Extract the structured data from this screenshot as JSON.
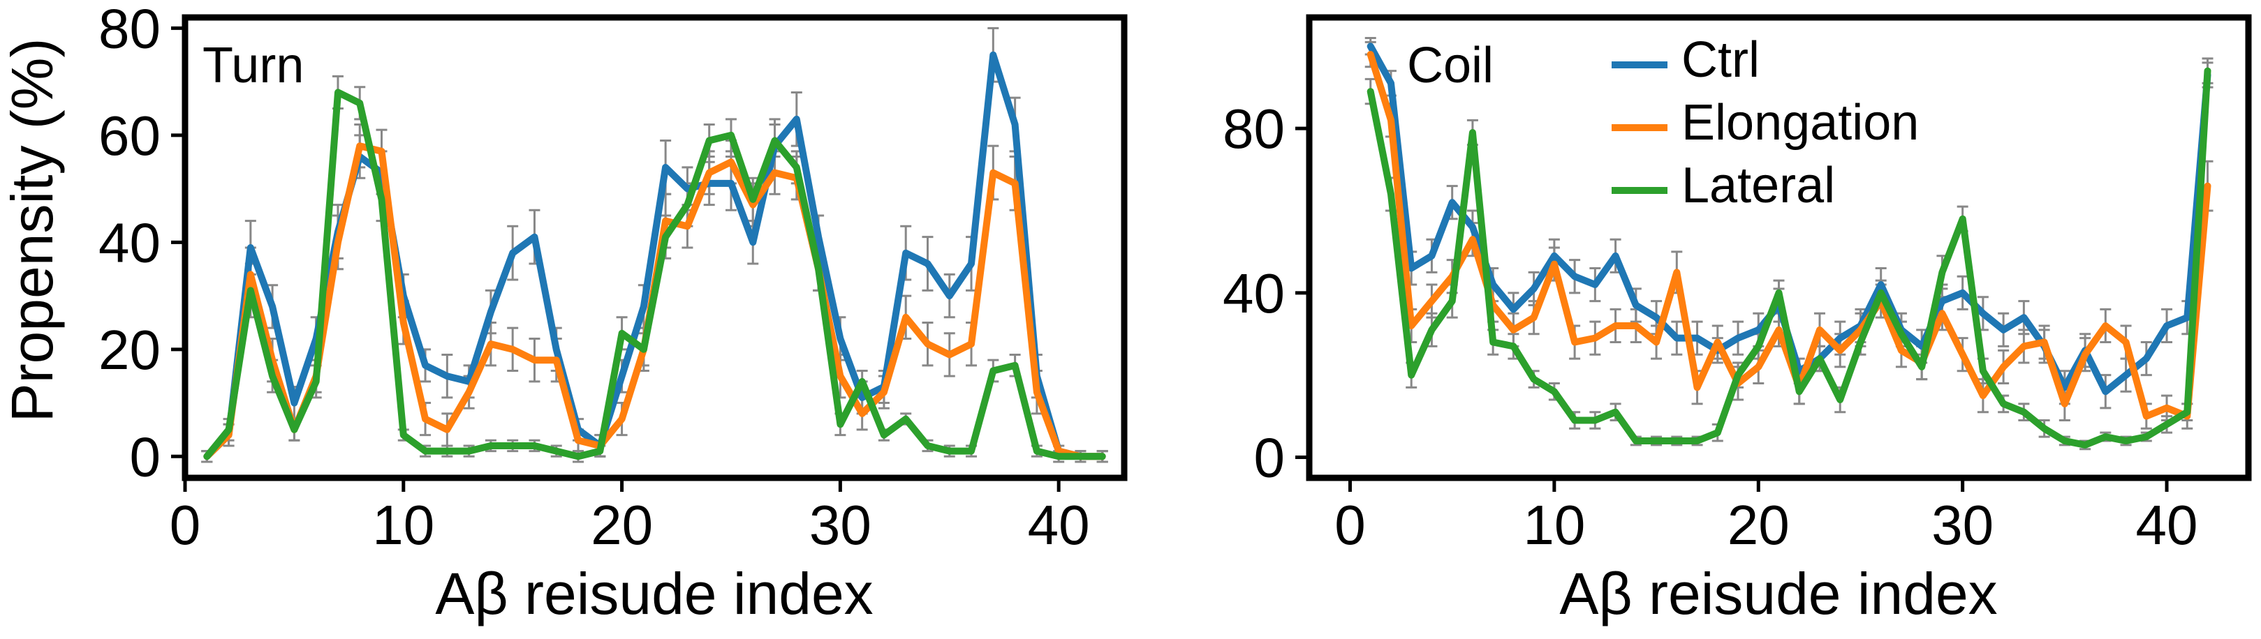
{
  "figure": {
    "y_axis_title": "Propensity (%)"
  },
  "chart_data": [
    {
      "type": "line",
      "panel_label": "Turn",
      "xlabel": "Aβ reisude index",
      "ylabel": "Propensity (%)",
      "xlim": [
        0,
        43
      ],
      "ylim": [
        -4,
        82
      ],
      "xticks": [
        0,
        10,
        20,
        30,
        40
      ],
      "yticks": [
        0,
        20,
        40,
        60,
        80
      ],
      "grid": false,
      "error_bars": true,
      "x": [
        1,
        2,
        3,
        4,
        5,
        6,
        7,
        8,
        9,
        10,
        11,
        12,
        13,
        14,
        15,
        16,
        17,
        18,
        19,
        20,
        21,
        22,
        23,
        24,
        25,
        26,
        27,
        28,
        29,
        30,
        31,
        32,
        33,
        34,
        35,
        36,
        37,
        38,
        39,
        40,
        41,
        42
      ],
      "series": [
        {
          "name": "Ctrl",
          "color": "#1f77b4",
          "values": [
            0,
            4,
            39,
            28,
            10,
            22,
            42,
            56,
            53,
            30,
            17,
            15,
            14,
            27,
            38,
            41,
            20,
            5,
            2,
            15,
            28,
            54,
            50,
            51,
            51,
            40,
            58,
            63,
            41,
            22,
            11,
            13,
            38,
            36,
            30,
            36,
            75,
            62,
            15,
            1,
            0,
            0
          ],
          "errors": [
            1,
            2,
            5,
            4,
            3,
            4,
            5,
            4,
            4,
            4,
            3,
            4,
            3,
            4,
            5,
            5,
            4,
            2,
            2,
            3,
            4,
            5,
            4,
            4,
            5,
            4,
            5,
            5,
            4,
            4,
            3,
            3,
            5,
            5,
            4,
            5,
            5,
            5,
            4,
            1,
            1,
            1
          ]
        },
        {
          "name": "Elongation",
          "color": "#ff7f0e",
          "values": [
            0,
            4,
            34,
            18,
            5,
            15,
            40,
            58,
            57,
            25,
            7,
            5,
            12,
            21,
            20,
            18,
            18,
            3,
            2,
            7,
            20,
            44,
            43,
            53,
            55,
            47,
            53,
            52,
            35,
            15,
            8,
            12,
            26,
            21,
            19,
            21,
            53,
            51,
            12,
            1,
            0,
            0
          ],
          "errors": [
            1,
            2,
            5,
            4,
            2,
            3,
            5,
            4,
            4,
            4,
            3,
            3,
            3,
            4,
            4,
            4,
            4,
            2,
            2,
            3,
            4,
            5,
            4,
            4,
            4,
            4,
            4,
            4,
            4,
            4,
            3,
            3,
            4,
            4,
            4,
            4,
            5,
            5,
            4,
            1,
            1,
            1
          ]
        },
        {
          "name": "Lateral",
          "color": "#2ca02c",
          "values": [
            0,
            5,
            31,
            15,
            5,
            14,
            68,
            66,
            48,
            4,
            1,
            1,
            1,
            2,
            2,
            2,
            1,
            0,
            1,
            23,
            20,
            41,
            47,
            59,
            60,
            48,
            59,
            54,
            35,
            6,
            14,
            4,
            7,
            2,
            1,
            1,
            16,
            17,
            1,
            0,
            0,
            0
          ],
          "errors": [
            1,
            2,
            5,
            3,
            2,
            3,
            3,
            3,
            4,
            1,
            1,
            1,
            1,
            1,
            1,
            1,
            1,
            1,
            1,
            3,
            3,
            4,
            4,
            3,
            3,
            4,
            3,
            3,
            4,
            2,
            2,
            1,
            1,
            1,
            1,
            1,
            2,
            2,
            1,
            1,
            1,
            1
          ]
        }
      ]
    },
    {
      "type": "line",
      "panel_label": "Coil",
      "xlabel": "Aβ reisude index",
      "ylabel": "",
      "xlim": [
        -2,
        44
      ],
      "ylim": [
        -5,
        107
      ],
      "xticks": [
        0,
        10,
        20,
        30,
        40
      ],
      "yticks": [
        0,
        40,
        80
      ],
      "grid": false,
      "error_bars": true,
      "legend": {
        "position": "top-center",
        "entries": [
          "Ctrl",
          "Elongation",
          "Lateral"
        ]
      },
      "x": [
        1,
        2,
        3,
        4,
        5,
        6,
        7,
        8,
        9,
        10,
        11,
        12,
        13,
        14,
        15,
        16,
        17,
        18,
        19,
        20,
        21,
        22,
        23,
        24,
        25,
        26,
        27,
        28,
        29,
        30,
        31,
        32,
        33,
        34,
        35,
        36,
        37,
        38,
        39,
        40,
        41,
        42
      ],
      "series": [
        {
          "name": "Ctrl",
          "color": "#1f77b4",
          "values": [
            100,
            91,
            46,
            49,
            62,
            56,
            42,
            36,
            41,
            49,
            44,
            42,
            49,
            37,
            34,
            29,
            29,
            26,
            29,
            31,
            37,
            21,
            24,
            29,
            32,
            42,
            31,
            27,
            38,
            40,
            35,
            31,
            34,
            27,
            17,
            26,
            16,
            20,
            24,
            32,
            34,
            93
          ],
          "errors": [
            2,
            3,
            4,
            4,
            4,
            4,
            4,
            4,
            4,
            4,
            4,
            4,
            4,
            4,
            4,
            4,
            4,
            3,
            4,
            4,
            4,
            3,
            3,
            4,
            4,
            4,
            4,
            4,
            4,
            4,
            4,
            4,
            4,
            4,
            4,
            4,
            4,
            4,
            4,
            4,
            4,
            3
          ]
        },
        {
          "name": "Elongation",
          "color": "#ff7f0e",
          "values": [
            98,
            82,
            32,
            38,
            44,
            53,
            37,
            31,
            34,
            47,
            28,
            29,
            32,
            32,
            28,
            45,
            17,
            28,
            18,
            22,
            31,
            17,
            31,
            26,
            31,
            38,
            26,
            23,
            35,
            25,
            15,
            22,
            27,
            28,
            13,
            25,
            32,
            28,
            10,
            12,
            10,
            66
          ],
          "errors": [
            3,
            4,
            4,
            4,
            4,
            4,
            4,
            4,
            4,
            4,
            4,
            4,
            4,
            4,
            4,
            5,
            4,
            4,
            4,
            4,
            4,
            4,
            4,
            4,
            4,
            4,
            4,
            4,
            4,
            4,
            4,
            4,
            4,
            4,
            4,
            4,
            4,
            4,
            3,
            3,
            3,
            6
          ]
        },
        {
          "name": "Lateral",
          "color": "#2ca02c",
          "values": [
            89,
            64,
            20,
            31,
            38,
            79,
            28,
            27,
            19,
            16,
            9,
            9,
            11,
            4,
            4,
            4,
            4,
            6,
            20,
            27,
            40,
            16,
            24,
            14,
            28,
            40,
            30,
            22,
            45,
            58,
            21,
            13,
            11,
            7,
            4,
            3,
            5,
            4,
            5,
            8,
            11,
            94
          ],
          "errors": [
            3,
            4,
            3,
            4,
            4,
            3,
            3,
            3,
            2,
            2,
            2,
            2,
            2,
            1,
            1,
            1,
            1,
            2,
            3,
            3,
            3,
            3,
            3,
            3,
            3,
            3,
            3,
            3,
            4,
            3,
            3,
            2,
            2,
            2,
            1,
            1,
            1,
            1,
            1,
            2,
            2,
            3
          ]
        }
      ]
    }
  ]
}
